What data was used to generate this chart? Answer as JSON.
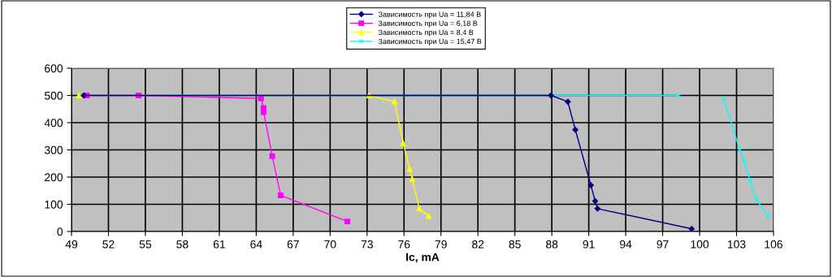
{
  "chart_data": {
    "type": "line",
    "xlabel": "Ic, mA",
    "xlim": [
      49,
      106
    ],
    "xticks": [
      49,
      52,
      55,
      58,
      61,
      64,
      67,
      70,
      73,
      76,
      79,
      82,
      85,
      88,
      91,
      94,
      97,
      100,
      103,
      106
    ],
    "ylim": [
      0,
      600
    ],
    "yticks": [
      0,
      100,
      200,
      300,
      400,
      500,
      600
    ],
    "grid": true,
    "legend": "top",
    "series": [
      {
        "name": "Зависимость при Uа = 11,84 В",
        "color": "#000080",
        "marker": "diamond",
        "x": [
          50.0,
          87.93,
          89.3,
          89.91,
          91.17,
          91.52,
          91.71,
          99.35
        ],
        "values": [
          500,
          500,
          477,
          374,
          170,
          112,
          84,
          10
        ]
      },
      {
        "name": "Зависимость при Uа = 6,18 В",
        "color": "#ff00ff",
        "marker": "square",
        "x": [
          50.24,
          54.45,
          64.39,
          64.6,
          64.6,
          65.3,
          65.98,
          71.4
        ],
        "values": [
          500,
          500,
          489,
          454,
          439,
          277,
          133,
          37
        ]
      },
      {
        "name": "Зависимость при Uа = 8,4 В",
        "color": "#ffff00",
        "marker": "triangle",
        "x": [
          49.6,
          73.17,
          75.23,
          75.94,
          76.46,
          76.67,
          77.24,
          78.0
        ],
        "values": [
          500,
          500,
          477,
          324,
          229,
          193,
          84,
          57
        ]
      },
      {
        "name": "Зависимость при Uа = 15,47 В",
        "color": "#00ffff",
        "marker": "cross",
        "x": [
          50.0,
          98.3,
          100.5,
          101.95,
          103.26,
          103.6,
          104.1,
          104.6,
          105.55
        ],
        "values": [
          500,
          500,
          null,
          488,
          300,
          261,
          186,
          118,
          57
        ]
      }
    ]
  }
}
